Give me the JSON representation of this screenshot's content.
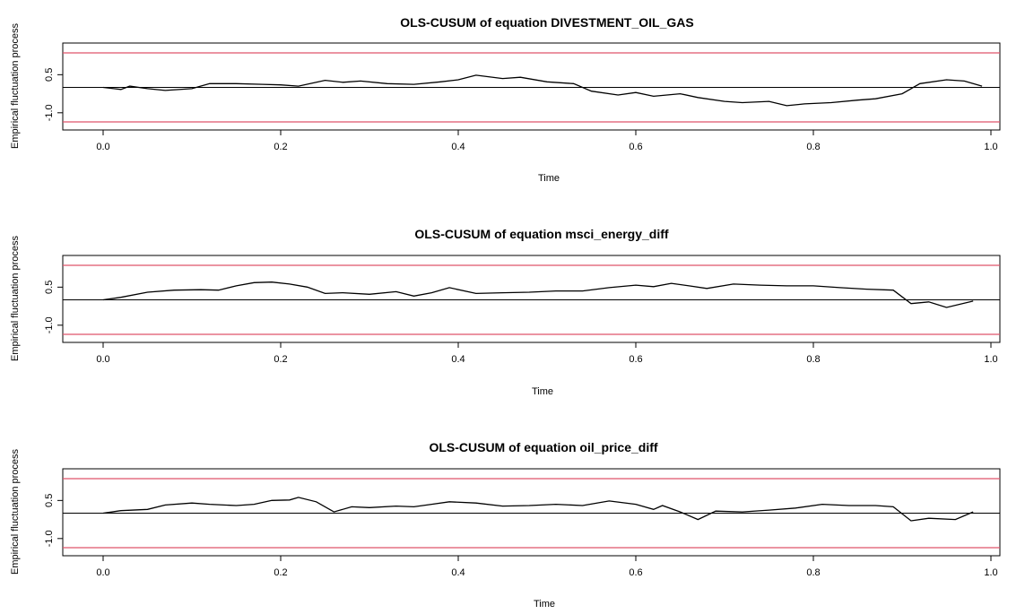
{
  "chart_data": [
    {
      "type": "line",
      "title": "OLS-CUSUM of equation DIVESTMENT_OIL_GAS",
      "xlabel": "Time",
      "ylabel": "Empirical fluctuation process",
      "xlim": [
        0.0,
        1.0
      ],
      "x_ticks": [
        "0.0",
        "0.2",
        "0.4",
        "0.6",
        "0.8",
        "1.0"
      ],
      "y_ticks": [
        "-1.0",
        "0.5"
      ],
      "boundary_upper": 1.36,
      "boundary_lower": -1.36,
      "reference_line": 0,
      "colors": {
        "process": "#000000",
        "boundary": "#DF536B",
        "reference": "#000000"
      },
      "x": [
        0.0,
        0.02,
        0.03,
        0.05,
        0.07,
        0.1,
        0.12,
        0.15,
        0.18,
        0.2,
        0.22,
        0.25,
        0.27,
        0.29,
        0.32,
        0.35,
        0.38,
        0.4,
        0.42,
        0.45,
        0.47,
        0.5,
        0.53,
        0.55,
        0.58,
        0.6,
        0.62,
        0.65,
        0.67,
        0.7,
        0.72,
        0.75,
        0.77,
        0.79,
        0.82,
        0.85,
        0.87,
        0.9,
        0.92,
        0.95,
        0.97,
        0.99
      ],
      "values": [
        0.0,
        -0.08,
        0.05,
        -0.05,
        -0.12,
        -0.05,
        0.15,
        0.15,
        0.12,
        0.1,
        0.05,
        0.28,
        0.2,
        0.25,
        0.15,
        0.12,
        0.22,
        0.3,
        0.48,
        0.35,
        0.4,
        0.22,
        0.15,
        -0.15,
        -0.3,
        -0.2,
        -0.35,
        -0.25,
        -0.4,
        -0.55,
        -0.6,
        -0.55,
        -0.72,
        -0.65,
        -0.6,
        -0.5,
        -0.45,
        -0.25,
        0.15,
        0.3,
        0.25,
        0.05
      ]
    },
    {
      "type": "line",
      "title": "OLS-CUSUM of equation msci_energy_diff",
      "xlabel": "Time",
      "ylabel": "Empirical fluctuation process",
      "xlim": [
        0.0,
        1.0
      ],
      "x_ticks": [
        "0.0",
        "0.2",
        "0.4",
        "0.6",
        "0.8",
        "1.0"
      ],
      "y_ticks": [
        "-1.0",
        "0.5"
      ],
      "boundary_upper": 1.36,
      "boundary_lower": -1.36,
      "reference_line": 0,
      "colors": {
        "process": "#000000",
        "boundary": "#DF536B",
        "reference": "#000000"
      },
      "x": [
        0.0,
        0.02,
        0.05,
        0.08,
        0.11,
        0.13,
        0.15,
        0.17,
        0.19,
        0.21,
        0.23,
        0.25,
        0.27,
        0.3,
        0.33,
        0.35,
        0.37,
        0.39,
        0.42,
        0.45,
        0.48,
        0.51,
        0.54,
        0.57,
        0.6,
        0.62,
        0.64,
        0.66,
        0.68,
        0.71,
        0.74,
        0.77,
        0.8,
        0.83,
        0.86,
        0.89,
        0.91,
        0.93,
        0.95,
        0.98
      ],
      "values": [
        0.0,
        0.1,
        0.3,
        0.38,
        0.4,
        0.38,
        0.55,
        0.68,
        0.7,
        0.62,
        0.5,
        0.25,
        0.28,
        0.22,
        0.32,
        0.15,
        0.28,
        0.48,
        0.25,
        0.28,
        0.3,
        0.35,
        0.35,
        0.48,
        0.58,
        0.52,
        0.65,
        0.55,
        0.45,
        0.62,
        0.58,
        0.55,
        0.55,
        0.48,
        0.42,
        0.38,
        -0.15,
        -0.08,
        -0.3,
        -0.05
      ]
    },
    {
      "type": "line",
      "title": "OLS-CUSUM of equation oil_price_diff",
      "xlabel": "Time",
      "ylabel": "Empirical fluctuation process",
      "xlim": [
        0.0,
        1.0
      ],
      "x_ticks": [
        "0.0",
        "0.2",
        "0.4",
        "0.6",
        "0.8",
        "1.0"
      ],
      "y_ticks": [
        "-1.0",
        "0.5"
      ],
      "boundary_upper": 1.36,
      "boundary_lower": -1.36,
      "reference_line": 0,
      "colors": {
        "process": "#000000",
        "boundary": "#DF536B",
        "reference": "#000000"
      },
      "x": [
        0.0,
        0.02,
        0.05,
        0.07,
        0.1,
        0.12,
        0.15,
        0.17,
        0.19,
        0.21,
        0.22,
        0.24,
        0.26,
        0.28,
        0.3,
        0.33,
        0.35,
        0.37,
        0.39,
        0.42,
        0.45,
        0.48,
        0.51,
        0.54,
        0.57,
        0.6,
        0.62,
        0.63,
        0.65,
        0.67,
        0.69,
        0.72,
        0.75,
        0.78,
        0.81,
        0.84,
        0.87,
        0.89,
        0.91,
        0.93,
        0.96,
        0.98
      ],
      "values": [
        0.0,
        0.1,
        0.15,
        0.32,
        0.4,
        0.35,
        0.3,
        0.35,
        0.5,
        0.52,
        0.62,
        0.45,
        0.05,
        0.25,
        0.22,
        0.28,
        0.25,
        0.35,
        0.45,
        0.4,
        0.28,
        0.3,
        0.35,
        0.3,
        0.48,
        0.35,
        0.15,
        0.3,
        0.05,
        -0.25,
        0.08,
        0.05,
        0.12,
        0.2,
        0.35,
        0.3,
        0.3,
        0.25,
        -0.3,
        -0.2,
        -0.25,
        0.05
      ]
    }
  ]
}
